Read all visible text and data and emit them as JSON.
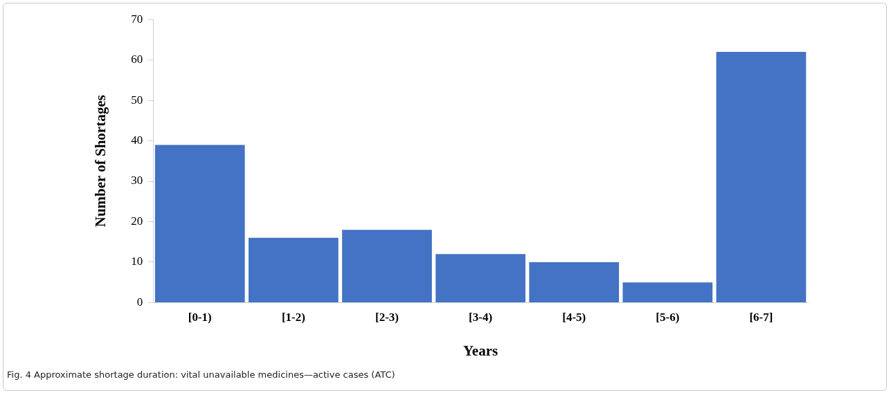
{
  "chart_data": {
    "type": "bar",
    "xlabel": "Years",
    "ylabel": "Number of Shortages",
    "categories": [
      "[0-1)",
      "[1-2)",
      "[2-3)",
      "[3-4)",
      "[4-5)",
      "[5-6)",
      "[6-7]"
    ],
    "values": [
      39,
      16,
      18,
      12,
      10,
      5,
      62
    ],
    "color": "#4472c4",
    "ylim": [
      0,
      70
    ],
    "yticks": [
      0,
      10,
      20,
      30,
      40,
      50,
      60,
      70
    ],
    "grid": false,
    "legend": false,
    "annotations": [
      "Fig. 4  Approximate shortage duration: vital unavailable medicines—active cases (ATC)"
    ]
  }
}
